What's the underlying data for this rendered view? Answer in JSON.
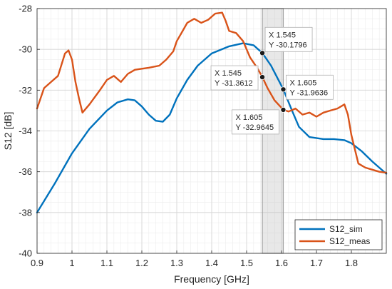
{
  "chart_data": {
    "type": "line",
    "xlabel": "Frequency [GHz]",
    "ylabel": "S12 [dB]",
    "xlim": [
      0.9,
      1.9
    ],
    "ylim": [
      -40,
      -28
    ],
    "xticks": [
      0.9,
      1.0,
      1.1,
      1.2,
      1.3,
      1.4,
      1.5,
      1.6,
      1.7,
      1.8
    ],
    "xtick_labels": [
      "0.9",
      "1",
      "1.1",
      "1.2",
      "1.3",
      "1.4",
      "1.5",
      "1.6",
      "1.7",
      "1.8"
    ],
    "yticks": [
      -40,
      -38,
      -36,
      -34,
      -32,
      -30,
      -28
    ],
    "ytick_labels": [
      "-40",
      "-38",
      "-36",
      "-34",
      "-32",
      "-30",
      "-28"
    ],
    "grid": true,
    "minor_grid": true,
    "legend_position": "bottom-right",
    "highlight_band": [
      1.545,
      1.605
    ],
    "series": [
      {
        "name": "S12_sim",
        "color": "#0072BD",
        "x": [
          0.9,
          0.95,
          1.0,
          1.05,
          1.1,
          1.13,
          1.16,
          1.18,
          1.2,
          1.22,
          1.24,
          1.26,
          1.28,
          1.3,
          1.33,
          1.36,
          1.4,
          1.45,
          1.49,
          1.52,
          1.545,
          1.57,
          1.605,
          1.63,
          1.65,
          1.68,
          1.72,
          1.75,
          1.78,
          1.8,
          1.83,
          1.86,
          1.9
        ],
        "y": [
          -38.0,
          -36.6,
          -35.1,
          -33.9,
          -33.0,
          -32.6,
          -32.45,
          -32.5,
          -32.8,
          -33.2,
          -33.5,
          -33.55,
          -33.2,
          -32.4,
          -31.5,
          -30.8,
          -30.2,
          -29.85,
          -29.7,
          -29.8,
          -30.18,
          -30.8,
          -31.96,
          -33.0,
          -33.8,
          -34.3,
          -34.4,
          -34.4,
          -34.45,
          -34.6,
          -35.0,
          -35.5,
          -36.1
        ]
      },
      {
        "name": "S12_meas",
        "color": "#D95319",
        "x": [
          0.9,
          0.92,
          0.94,
          0.96,
          0.98,
          0.99,
          1.0,
          1.01,
          1.02,
          1.03,
          1.05,
          1.08,
          1.1,
          1.12,
          1.14,
          1.16,
          1.18,
          1.2,
          1.22,
          1.25,
          1.27,
          1.29,
          1.3,
          1.31,
          1.33,
          1.35,
          1.37,
          1.39,
          1.41,
          1.43,
          1.44,
          1.45,
          1.47,
          1.49,
          1.51,
          1.53,
          1.545,
          1.56,
          1.58,
          1.605,
          1.62,
          1.64,
          1.66,
          1.68,
          1.7,
          1.72,
          1.74,
          1.76,
          1.78,
          1.79,
          1.8,
          1.82,
          1.84,
          1.86,
          1.88,
          1.9
        ],
        "y": [
          -32.9,
          -31.9,
          -31.6,
          -31.3,
          -30.2,
          -30.05,
          -30.5,
          -31.6,
          -32.4,
          -33.1,
          -32.7,
          -32.0,
          -31.5,
          -31.3,
          -31.6,
          -31.2,
          -31.0,
          -30.95,
          -30.9,
          -30.8,
          -30.5,
          -30.1,
          -29.6,
          -29.3,
          -28.7,
          -28.5,
          -28.7,
          -28.55,
          -28.25,
          -28.2,
          -28.6,
          -29.1,
          -29.2,
          -29.6,
          -30.4,
          -30.9,
          -31.36,
          -31.9,
          -32.5,
          -32.96,
          -33.05,
          -32.9,
          -33.2,
          -33.1,
          -33.3,
          -33.1,
          -33.0,
          -32.9,
          -32.7,
          -33.2,
          -34.2,
          -35.6,
          -35.8,
          -35.9,
          -36.0,
          -36.05
        ]
      }
    ],
    "datatips": [
      {
        "x_label": "X 1.545",
        "y_label": "Y -30.1796",
        "x": 1.545,
        "y": -30.1796
      },
      {
        "x_label": "X 1.605",
        "y_label": "Y -31.9636",
        "x": 1.605,
        "y": -31.9636
      },
      {
        "x_label": "X 1.545",
        "y_label": "Y -31.3612",
        "x": 1.545,
        "y": -31.3612
      },
      {
        "x_label": "X 1.605",
        "y_label": "Y -32.9645",
        "x": 1.605,
        "y": -32.9645
      }
    ]
  }
}
